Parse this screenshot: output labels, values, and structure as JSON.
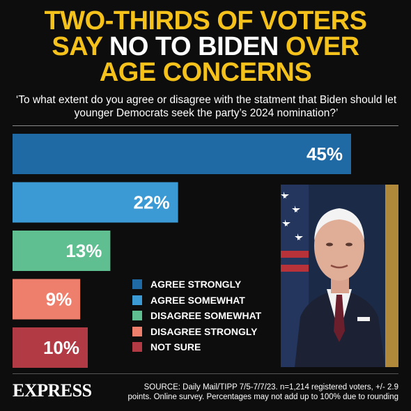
{
  "headline": {
    "line1": "TWO-THIRDS OF VOTERS",
    "line2_a": "SAY ",
    "line2_b": "NO TO BIDEN",
    "line2_c": " OVER",
    "line3": "AGE CONCERNS"
  },
  "question": "‘To what extent do you agree or disagree with the statment that Biden should let younger Democrats seek the party’s 2024 nomination?’",
  "colors": {
    "headline": "#f5c21b",
    "background": "#0d0d0d"
  },
  "chart_data": {
    "type": "bar",
    "orientation": "horizontal",
    "categories": [
      "AGREE STRONGLY",
      "AGREE SOMEWHAT",
      "DISAGREE SOMEWHAT",
      "DISAGREE STRONGLY",
      "NOT SURE"
    ],
    "values": [
      45,
      22,
      13,
      9,
      10
    ],
    "value_labels": [
      "45%",
      "22%",
      "13%",
      "9%",
      "10%"
    ],
    "colors": [
      "#1f6aa5",
      "#3b9ad4",
      "#5fbf91",
      "#ee7f6c",
      "#b13a45"
    ],
    "xlim": [
      0,
      50
    ],
    "grid": false,
    "legend_position": "bottom-center"
  },
  "photo": {
    "icon": "person-photo-icon"
  },
  "footer": {
    "logo": "EXPRESS",
    "source": "SOURCE: Daily Mail/TIPP 7/5-7/7/23. n=1,214 registered voters, +/- 2.9 points. Online survey. Percentages may not add up to 100% due to rounding"
  }
}
